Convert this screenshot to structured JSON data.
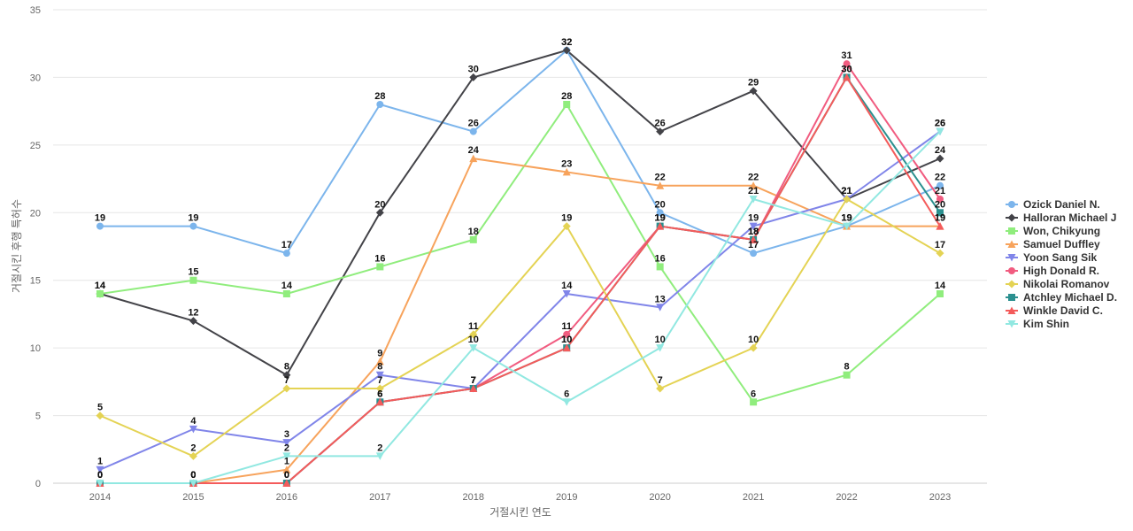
{
  "chart_data": {
    "type": "line",
    "title": "",
    "xlabel": "거절시킨 연도",
    "ylabel": "거절시킨 후행 특허수",
    "x": [
      "2014",
      "2015",
      "2016",
      "2017",
      "2018",
      "2019",
      "2020",
      "2021",
      "2022",
      "2023"
    ],
    "ylim": [
      0,
      35
    ],
    "yticks": [
      0,
      5,
      10,
      15,
      20,
      25,
      30,
      35
    ],
    "grid": true,
    "legend_position": "right",
    "series": [
      {
        "name": "Ozick Daniel N.",
        "color": "#7cb5ec",
        "marker": "circle",
        "values": [
          19,
          19,
          17,
          28,
          26,
          32,
          20,
          17,
          19,
          22
        ]
      },
      {
        "name": "Halloran Michael J",
        "color": "#434348",
        "marker": "diamond",
        "values": [
          14,
          12,
          8,
          20,
          30,
          32,
          26,
          29,
          21,
          24
        ]
      },
      {
        "name": "Won, Chikyung",
        "color": "#90ed7d",
        "marker": "square",
        "values": [
          14,
          15,
          14,
          16,
          18,
          28,
          16,
          6,
          8,
          14
        ]
      },
      {
        "name": "Samuel Duffley",
        "color": "#f7a35c",
        "marker": "triangle",
        "values": [
          0,
          0,
          1,
          9,
          24,
          23,
          22,
          22,
          19,
          19
        ]
      },
      {
        "name": "Yoon Sang Sik",
        "color": "#8085e9",
        "marker": "triangle-down",
        "values": [
          1,
          4,
          3,
          8,
          7,
          14,
          13,
          19,
          21,
          26
        ]
      },
      {
        "name": "High Donald R.",
        "color": "#f15c80",
        "marker": "circle",
        "values": [
          0,
          0,
          0,
          6,
          7,
          11,
          19,
          18,
          31,
          21
        ]
      },
      {
        "name": "Nikolai Romanov",
        "color": "#e4d354",
        "marker": "diamond",
        "values": [
          5,
          2,
          7,
          7,
          11,
          19,
          7,
          10,
          21,
          17
        ]
      },
      {
        "name": "Atchley Michael D.",
        "color": "#2b908f",
        "marker": "square",
        "values": [
          0,
          0,
          0,
          6,
          7,
          10,
          19,
          18,
          30,
          20
        ]
      },
      {
        "name": "Winkle David C.",
        "color": "#f45b5b",
        "marker": "triangle",
        "values": [
          0,
          0,
          0,
          6,
          7,
          10,
          19,
          18,
          30,
          19
        ]
      },
      {
        "name": "Kim Shin",
        "color": "#91e8e1",
        "marker": "triangle-down",
        "values": [
          0,
          0,
          2,
          2,
          10,
          6,
          10,
          21,
          19,
          26
        ]
      }
    ]
  }
}
